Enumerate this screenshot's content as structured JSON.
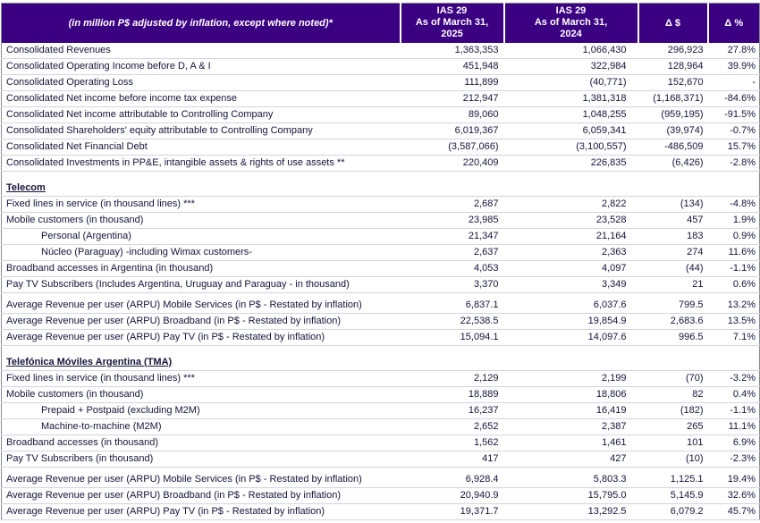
{
  "colors": {
    "header_bg": "#3b0082",
    "header_text": "#ffffff",
    "body_text": "#14143a",
    "row_border": "#d4d4de",
    "outer_border": "#8a8a94"
  },
  "header": {
    "label_note": "(in million P$ adjusted by inflation, except where noted)*",
    "col_2025": {
      "l1": "IAS 29",
      "l2": "As of March 31,",
      "l3": "2025"
    },
    "col_2024": {
      "l1": "IAS 29",
      "l2": "As of March 31,",
      "l3": "2024"
    },
    "delta_abs": "Δ $",
    "delta_pct": "Δ %"
  },
  "rows": [
    {
      "type": "data",
      "label": "Consolidated Revenues",
      "v2025": "1,363,353",
      "v2024": "1,066,430",
      "delta": "296,923",
      "pct": "27.8%"
    },
    {
      "type": "data",
      "label": "Consolidated Operating Income before D, A & I",
      "v2025": "451,948",
      "v2024": "322,984",
      "delta": "128,964",
      "pct": "39.9%"
    },
    {
      "type": "data",
      "label": "Consolidated Operating Loss",
      "v2025": "111,899",
      "v2024": "(40,771)",
      "delta": "152,670",
      "pct": "-"
    },
    {
      "type": "data",
      "label": "Consolidated Net income before income tax expense",
      "v2025": "212,947",
      "v2024": "1,381,318",
      "delta": "(1,168,371)",
      "pct": "-84.6%"
    },
    {
      "type": "data",
      "label": "Consolidated Net income attributable to Controlling Company",
      "v2025": "89,060",
      "v2024": "1,048,255",
      "delta": "(959,195)",
      "pct": "-91.5%"
    },
    {
      "type": "data",
      "label": "Consolidated Shareholders' equity attributable to Controlling Company",
      "v2025": "6,019,367",
      "v2024": "6,059,341",
      "delta": "(39,974)",
      "pct": "-0.7%"
    },
    {
      "type": "data",
      "label": "Consolidated Net Financial Debt",
      "v2025": "(3,587,066)",
      "v2024": "(3,100,557)",
      "delta": "-486,509",
      "pct": "15.7%"
    },
    {
      "type": "data",
      "label": "Consolidated Investments in PP&E, intangible assets & rights of use assets **",
      "v2025": "220,409",
      "v2024": "226,835",
      "delta": "(6,426)",
      "pct": "-2.8%"
    },
    {
      "type": "spacer",
      "h": 10
    },
    {
      "type": "section",
      "label": "Telecom"
    },
    {
      "type": "data",
      "label": "Fixed lines in service (in thousand lines) ***",
      "v2025": "2,687",
      "v2024": "2,822",
      "delta": "(134)",
      "pct": "-4.8%"
    },
    {
      "type": "data",
      "label": "Mobile customers (in thousand)",
      "v2025": "23,985",
      "v2024": "23,528",
      "delta": "457",
      "pct": "1.9%"
    },
    {
      "type": "data",
      "indent": 1,
      "label": "Personal (Argentina)",
      "v2025": "21,347",
      "v2024": "21,164",
      "delta": "183",
      "pct": "0.9%"
    },
    {
      "type": "data",
      "indent": 1,
      "label": "Núcleo (Paraguay) -including Wimax customers-",
      "v2025": "2,637",
      "v2024": "2,363",
      "delta": "274",
      "pct": "11.6%"
    },
    {
      "type": "data",
      "label": "Broadband accesses in Argentina (in thousand)",
      "v2025": "4,053",
      "v2024": "4,097",
      "delta": "(44)",
      "pct": "-1.1%"
    },
    {
      "type": "data",
      "label": "Pay TV Subscribers (Includes Argentina, Uruguay and Paraguay - in thousand)",
      "v2025": "3,370",
      "v2024": "3,349",
      "delta": "21",
      "pct": "0.6%"
    },
    {
      "type": "spacer",
      "h": 5
    },
    {
      "type": "data",
      "label": "Average Revenue per user (ARPU) Mobile Services (in P$ - Restated by inflation)",
      "v2025": "6,837.1",
      "v2024": "6,037.6",
      "delta": "799.5",
      "pct": "13.2%"
    },
    {
      "type": "data",
      "label": "Average Revenue per user (ARPU) Broadband (in P$ - Restated by inflation)",
      "v2025": "22,538.5",
      "v2024": "19,854.9",
      "delta": "2,683.6",
      "pct": "13.5%"
    },
    {
      "type": "data",
      "label": "Average Revenue per user (ARPU) Pay TV (in P$ - Restated by inflation)",
      "v2025": "15,094.1",
      "v2024": "14,097.6",
      "delta": "996.5",
      "pct": "7.1%"
    },
    {
      "type": "spacer",
      "h": 10
    },
    {
      "type": "section",
      "label": "Telefónica Móviles Argentina (TMA)"
    },
    {
      "type": "data",
      "label": "Fixed lines in service (in thousand lines) ***",
      "v2025": "2,129",
      "v2024": "2,199",
      "delta": "(70)",
      "pct": "-3.2%"
    },
    {
      "type": "data",
      "label": "Mobile customers (in thousand)",
      "v2025": "18,889",
      "v2024": "18,806",
      "delta": "82",
      "pct": "0.4%"
    },
    {
      "type": "data",
      "indent": 1,
      "label": "Prepaid + Postpaid (excluding M2M)",
      "v2025": "16,237",
      "v2024": "16,419",
      "delta": "(182)",
      "pct": "-1.1%"
    },
    {
      "type": "data",
      "indent": 1,
      "label": "Machine-to-machine (M2M)",
      "v2025": "2,652",
      "v2024": "2,387",
      "delta": "265",
      "pct": "11.1%"
    },
    {
      "type": "data",
      "label": "Broadband accesses (in thousand)",
      "v2025": "1,562",
      "v2024": "1,461",
      "delta": "101",
      "pct": "6.9%"
    },
    {
      "type": "data",
      "label": "Pay TV Subscribers (in thousand)",
      "v2025": "417",
      "v2024": "427",
      "delta": "(10)",
      "pct": "-2.3%"
    },
    {
      "type": "spacer",
      "h": 5
    },
    {
      "type": "data",
      "label": "Average Revenue per user (ARPU) Mobile Services (in P$ - Restated by inflation)",
      "v2025": "6,928.4",
      "v2024": "5,803.3",
      "delta": "1,125.1",
      "pct": "19.4%"
    },
    {
      "type": "data",
      "label": "Average Revenue per user (ARPU) Broadband (in P$ - Restated by inflation)",
      "v2025": "20,940.9",
      "v2024": "15,795.0",
      "delta": "5,145.9",
      "pct": "32.6%"
    },
    {
      "type": "data",
      "label": "Average Revenue per user (ARPU) Pay TV (in P$ - Restated by inflation)",
      "v2025": "19,371.7",
      "v2024": "13,292.5",
      "delta": "6,079.2",
      "pct": "45.7%"
    }
  ]
}
